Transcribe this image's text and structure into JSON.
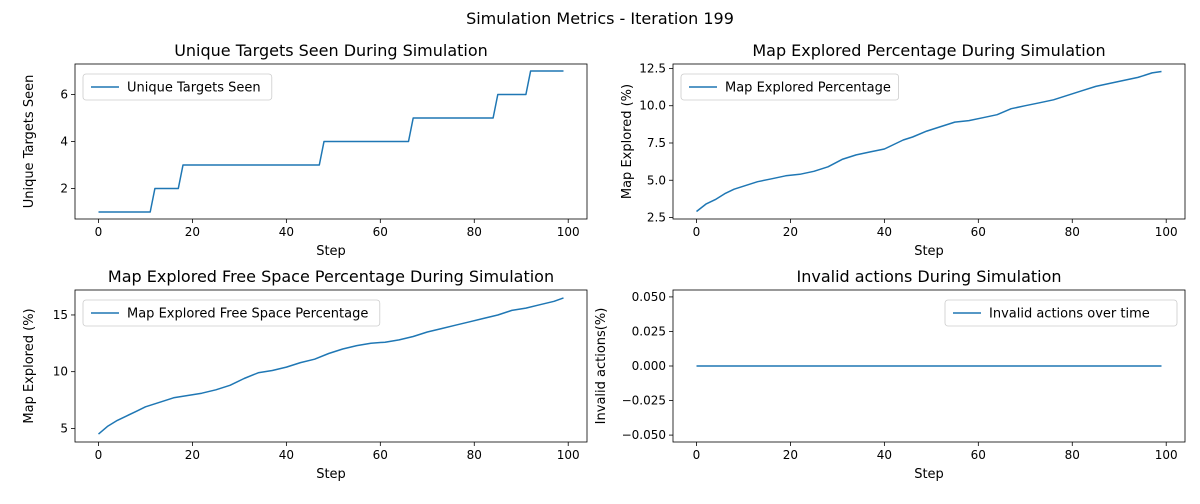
{
  "figure": {
    "title": "Simulation Metrics - Iteration 199"
  },
  "chart_data": [
    {
      "type": "line",
      "title": "Unique Targets Seen During Simulation",
      "xlabel": "Step",
      "ylabel": "Unique Targets Seen",
      "xlim": [
        -5,
        104
      ],
      "ylim": [
        0.7,
        7.3
      ],
      "xticks": [
        0,
        20,
        40,
        60,
        80,
        100
      ],
      "yticks": [
        2,
        4,
        6
      ],
      "yticklabels": [
        "2",
        "4",
        "6"
      ],
      "legend": "top-left",
      "color": "#1f77b4",
      "series": [
        {
          "name": "Unique Targets Seen",
          "x": [
            0,
            11,
            12,
            17,
            18,
            47,
            48,
            66,
            67,
            84,
            85,
            91,
            92,
            99
          ],
          "y": [
            1,
            1,
            2,
            2,
            3,
            3,
            4,
            4,
            5,
            5,
            6,
            6,
            7,
            7
          ]
        }
      ]
    },
    {
      "type": "line",
      "title": "Map Explored Percentage During Simulation",
      "xlabel": "Step",
      "ylabel": "Map Explored (%)",
      "xlim": [
        -5,
        104
      ],
      "ylim": [
        2.4,
        12.8
      ],
      "xticks": [
        0,
        20,
        40,
        60,
        80,
        100
      ],
      "yticks": [
        2.5,
        5.0,
        7.5,
        10.0,
        12.5
      ],
      "yticklabels": [
        "2.5",
        "5.0",
        "7.5",
        "10.0",
        "12.5"
      ],
      "legend": "top-left",
      "color": "#1f77b4",
      "series": [
        {
          "name": "Map Explored Percentage",
          "x": [
            0,
            2,
            4,
            6,
            8,
            10,
            13,
            16,
            19,
            22,
            25,
            28,
            31,
            34,
            37,
            40,
            42,
            44,
            46,
            49,
            52,
            55,
            58,
            61,
            64,
            67,
            70,
            73,
            76,
            79,
            82,
            85,
            88,
            91,
            94,
            97,
            99
          ],
          "y": [
            2.9,
            3.4,
            3.7,
            4.1,
            4.4,
            4.6,
            4.9,
            5.1,
            5.3,
            5.4,
            5.6,
            5.9,
            6.4,
            6.7,
            6.9,
            7.1,
            7.4,
            7.7,
            7.9,
            8.3,
            8.6,
            8.9,
            9.0,
            9.2,
            9.4,
            9.8,
            10.0,
            10.2,
            10.4,
            10.7,
            11.0,
            11.3,
            11.5,
            11.7,
            11.9,
            12.2,
            12.3
          ]
        }
      ]
    },
    {
      "type": "line",
      "title": "Map Explored Free Space Percentage During Simulation",
      "xlabel": "Step",
      "ylabel": "Map Explored (%)",
      "xlim": [
        -5,
        104
      ],
      "ylim": [
        3.8,
        17.2
      ],
      "xticks": [
        0,
        20,
        40,
        60,
        80,
        100
      ],
      "yticks": [
        5,
        10,
        15
      ],
      "yticklabels": [
        "5",
        "10",
        "15"
      ],
      "legend": "top-left",
      "color": "#1f77b4",
      "series": [
        {
          "name": "Map Explored Free Space Percentage",
          "x": [
            0,
            2,
            4,
            6,
            8,
            10,
            13,
            16,
            19,
            22,
            25,
            28,
            31,
            34,
            37,
            40,
            43,
            46,
            49,
            52,
            55,
            58,
            61,
            64,
            67,
            70,
            73,
            76,
            79,
            82,
            85,
            88,
            91,
            94,
            97,
            99
          ],
          "y": [
            4.5,
            5.2,
            5.7,
            6.1,
            6.5,
            6.9,
            7.3,
            7.7,
            7.9,
            8.1,
            8.4,
            8.8,
            9.4,
            9.9,
            10.1,
            10.4,
            10.8,
            11.1,
            11.6,
            12.0,
            12.3,
            12.5,
            12.6,
            12.8,
            13.1,
            13.5,
            13.8,
            14.1,
            14.4,
            14.7,
            15.0,
            15.4,
            15.6,
            15.9,
            16.2,
            16.5
          ]
        }
      ]
    },
    {
      "type": "line",
      "title": "Invalid actions During Simulation",
      "xlabel": "Step",
      "ylabel": "Invalid actions(%)",
      "xlim": [
        -5,
        104
      ],
      "ylim": [
        -0.055,
        0.055
      ],
      "xticks": [
        0,
        20,
        40,
        60,
        80,
        100
      ],
      "yticks": [
        -0.05,
        -0.025,
        0.0,
        0.025,
        0.05
      ],
      "yticklabels": [
        "−0.050",
        "−0.025",
        "0.000",
        "0.025",
        "0.050"
      ],
      "legend": "top-right",
      "color": "#1f77b4",
      "series": [
        {
          "name": "Invalid actions over time",
          "x": [
            0,
            99
          ],
          "y": [
            0,
            0
          ]
        }
      ]
    }
  ]
}
